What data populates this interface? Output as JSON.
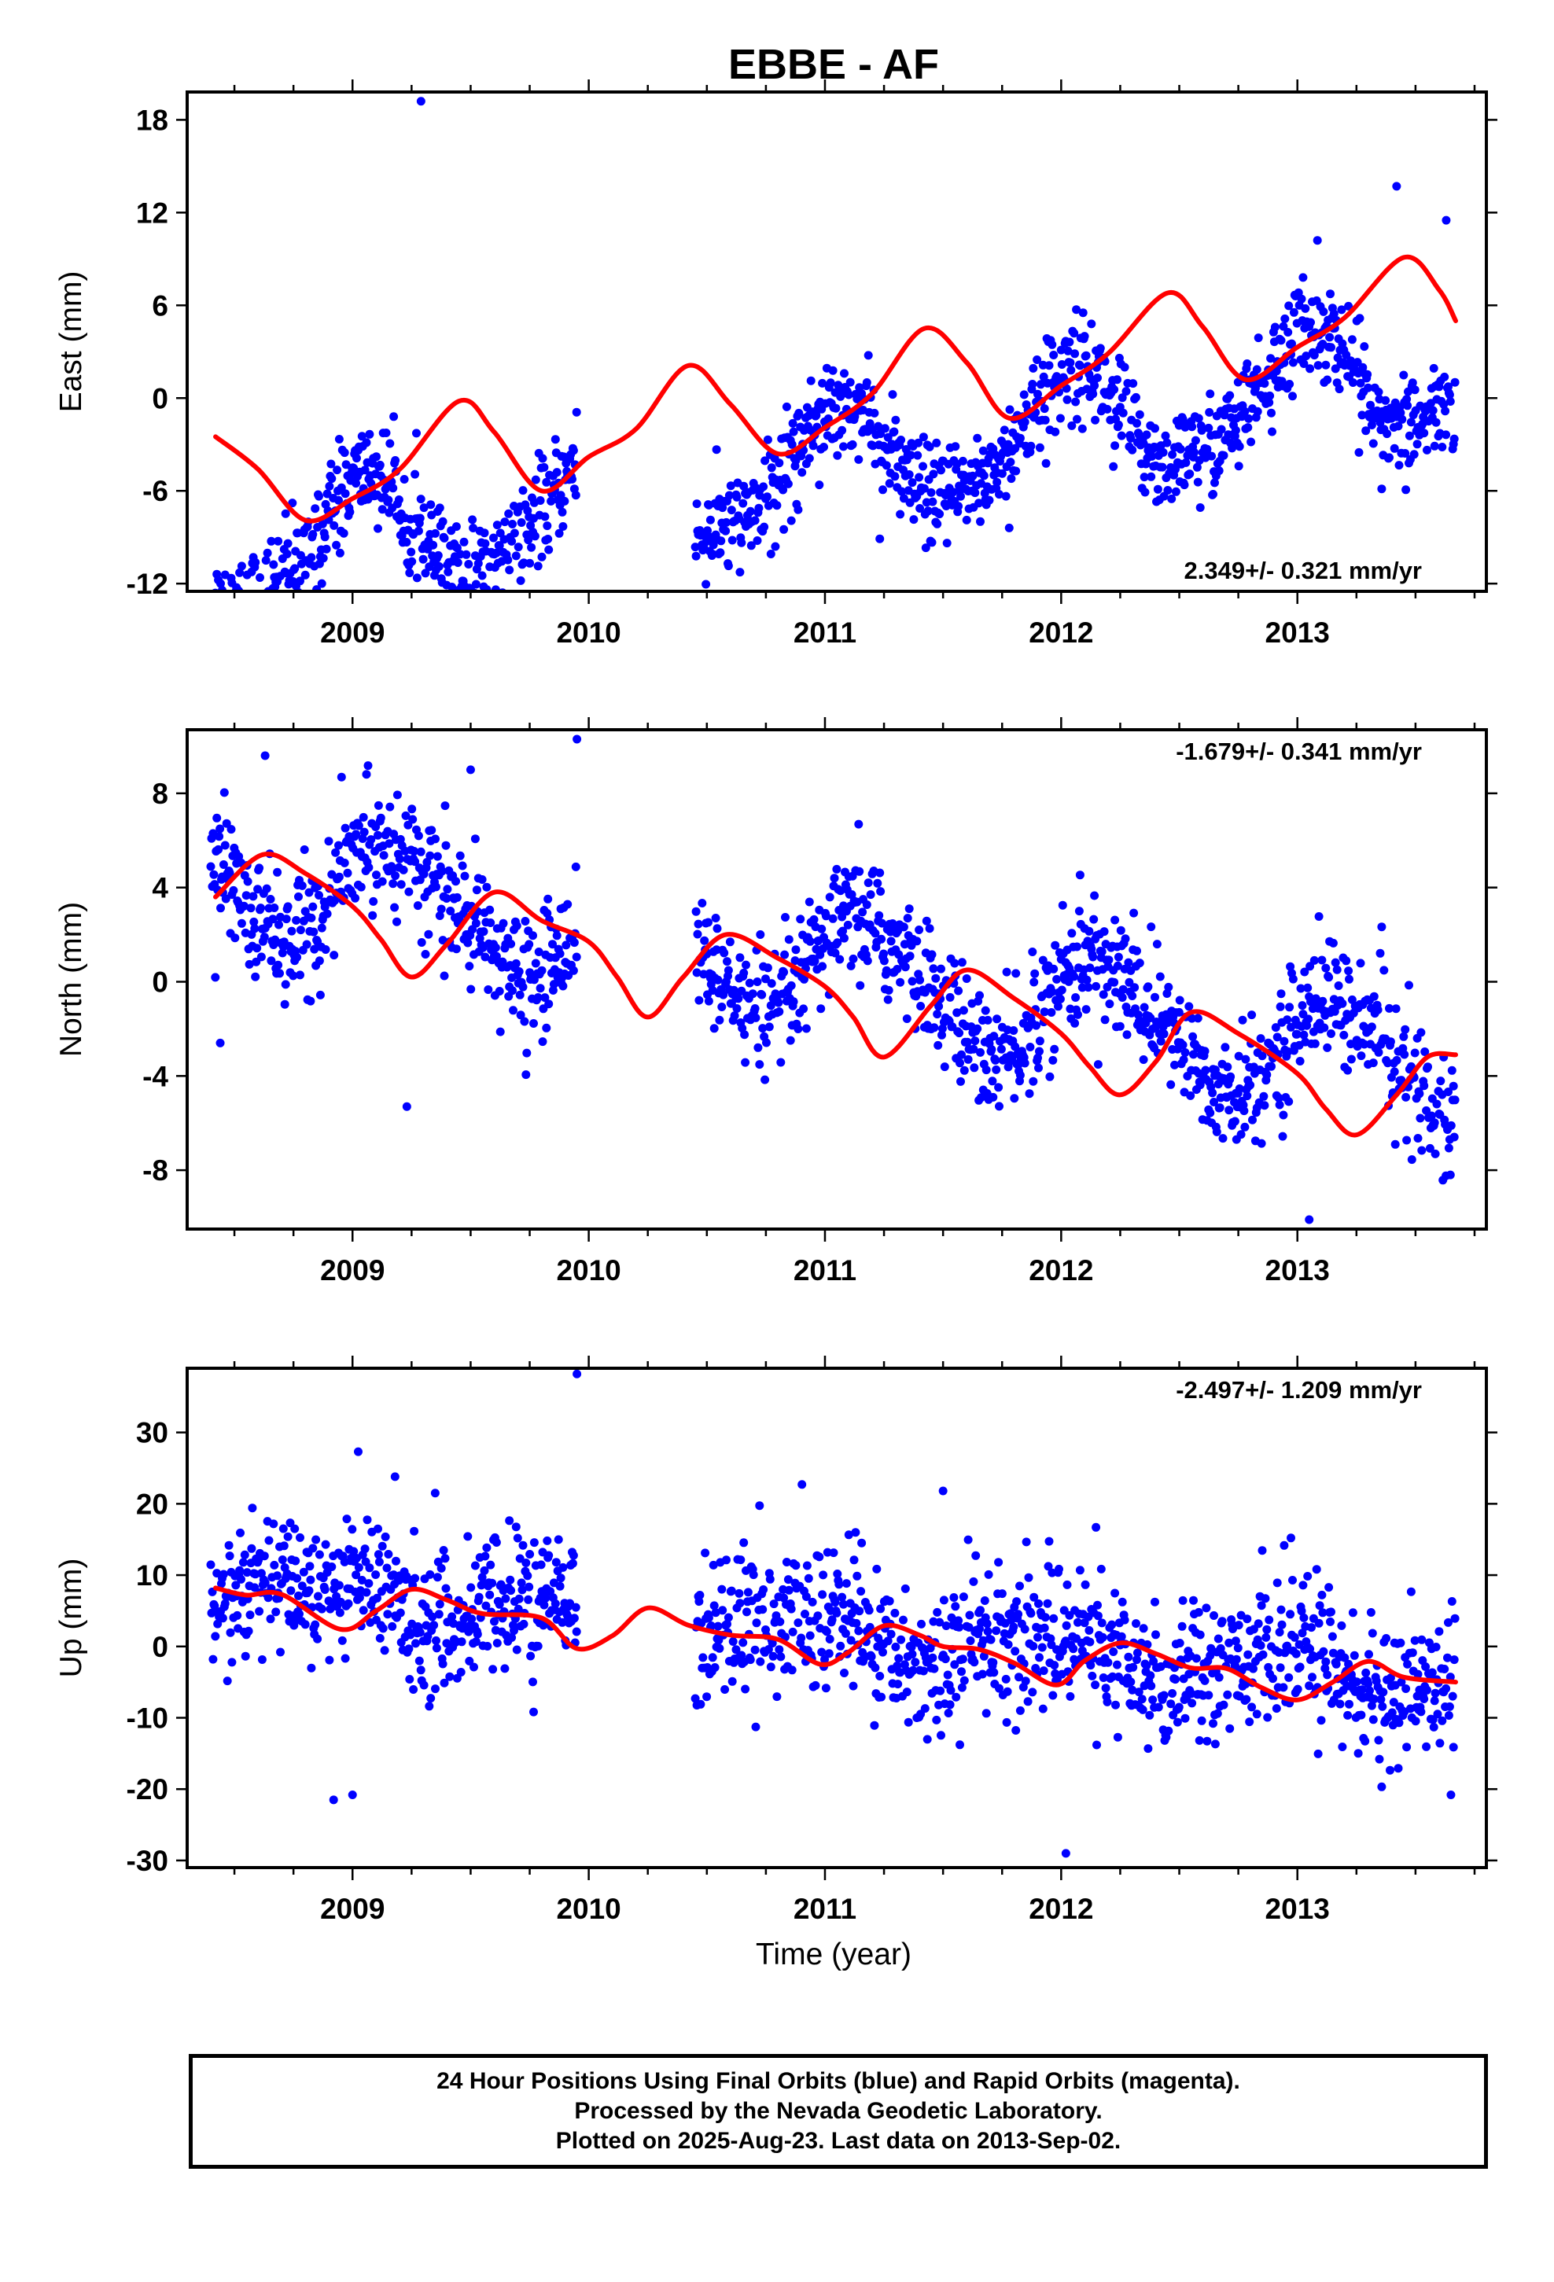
{
  "chart_data": {
    "type": "scatter",
    "title": "EBBE - AF",
    "xlabel": "Time (year)",
    "xlim": [
      2008.3,
      2013.8
    ],
    "x_ticks": [
      2009,
      2010,
      2011,
      2012,
      2013
    ],
    "x_tick_labels": [
      "2009",
      "2010",
      "2011",
      "2012",
      "2013"
    ],
    "series_styles": {
      "points": "#0000ff",
      "fit": "#ff0000"
    },
    "data_gap": [
      2009.95,
      2010.45
    ],
    "panels": [
      {
        "name": "east",
        "ylabel": "East (mm)",
        "ylim": [
          -12.5,
          19.8
        ],
        "y_ticks": [
          18,
          12,
          6,
          0,
          -6,
          -12
        ],
        "y_tick_labels": [
          "18",
          "12",
          "6",
          "0",
          "-6",
          "-12"
        ],
        "rate_label": "2.349+/- 0.321 mm/yr",
        "rate_position": "bottom-right",
        "model": {
          "rate": 2.349,
          "amp_annual": 3.6,
          "phase_annual": 1.3,
          "amp_semi": 0.6,
          "phase_semi": 0.5,
          "offset": -4.4,
          "t0": 2011.0
        },
        "noise_sd": 1.6,
        "fit_points": [
          [
            2008.42,
            -2.5
          ],
          [
            2008.6,
            -4.6
          ],
          [
            2008.8,
            -7.9
          ],
          [
            2009.0,
            -6.5
          ],
          [
            2009.2,
            -4.6
          ],
          [
            2009.45,
            -0.2
          ],
          [
            2009.6,
            -2.2
          ],
          [
            2009.8,
            -6.0
          ],
          [
            2010.0,
            -3.8
          ],
          [
            2010.2,
            -2.0
          ],
          [
            2010.42,
            2.1
          ],
          [
            2010.6,
            -0.4
          ],
          [
            2010.8,
            -3.6
          ],
          [
            2011.0,
            -1.9
          ],
          [
            2011.2,
            0.3
          ],
          [
            2011.42,
            4.5
          ],
          [
            2011.6,
            2.3
          ],
          [
            2011.78,
            -1.3
          ],
          [
            2012.0,
            0.8
          ],
          [
            2012.2,
            2.9
          ],
          [
            2012.45,
            6.8
          ],
          [
            2012.6,
            4.6
          ],
          [
            2012.78,
            1.2
          ],
          [
            2013.0,
            3.3
          ],
          [
            2013.2,
            5.2
          ],
          [
            2013.45,
            9.1
          ],
          [
            2013.6,
            7.0
          ],
          [
            2013.67,
            5.0
          ]
        ],
        "outliers": [
          [
            2009.29,
            19.2
          ],
          [
            2013.42,
            13.7
          ],
          [
            2013.63,
            11.5
          ],
          [
            2008.58,
            -10.3
          ],
          [
            2008.87,
            -12.0
          ],
          [
            2010.79,
            -9.6
          ],
          [
            2011.78,
            -8.4
          ]
        ]
      },
      {
        "name": "north",
        "ylabel": "North (mm)",
        "ylim": [
          -10.5,
          10.7
        ],
        "y_ticks": [
          8,
          4,
          0,
          -4,
          -8
        ],
        "y_tick_labels": [
          "8",
          "4",
          "0",
          "-4",
          "-8"
        ],
        "rate_label": "-1.679+/- 0.341 mm/yr",
        "rate_position": "top-right",
        "model": {
          "rate": -1.679,
          "amp_annual": 2.3,
          "phase_annual": 0.4,
          "amp_semi": 0.4,
          "phase_semi": 1.0,
          "offset": 0.5,
          "t0": 2011.0
        },
        "noise_sd": 1.3,
        "fit_points": [
          [
            2008.42,
            3.6
          ],
          [
            2008.62,
            5.4
          ],
          [
            2008.8,
            4.6
          ],
          [
            2009.0,
            3.2
          ],
          [
            2009.12,
            1.8
          ],
          [
            2009.25,
            0.2
          ],
          [
            2009.4,
            1.6
          ],
          [
            2009.6,
            3.8
          ],
          [
            2009.8,
            2.6
          ],
          [
            2010.0,
            1.7
          ],
          [
            2010.12,
            0.2
          ],
          [
            2010.25,
            -1.5
          ],
          [
            2010.4,
            0.2
          ],
          [
            2010.58,
            2.0
          ],
          [
            2010.8,
            1.0
          ],
          [
            2011.0,
            -0.2
          ],
          [
            2011.12,
            -1.5
          ],
          [
            2011.25,
            -3.2
          ],
          [
            2011.45,
            -1.0
          ],
          [
            2011.6,
            0.5
          ],
          [
            2011.8,
            -0.7
          ],
          [
            2012.0,
            -2.2
          ],
          [
            2012.12,
            -3.6
          ],
          [
            2012.25,
            -4.8
          ],
          [
            2012.4,
            -3.4
          ],
          [
            2012.55,
            -1.3
          ],
          [
            2012.75,
            -2.2
          ],
          [
            2013.0,
            -3.9
          ],
          [
            2013.12,
            -5.4
          ],
          [
            2013.25,
            -6.5
          ],
          [
            2013.42,
            -4.8
          ],
          [
            2013.55,
            -3.2
          ],
          [
            2013.67,
            -3.1
          ]
        ],
        "outliers": [
          [
            2008.63,
            9.6
          ],
          [
            2009.5,
            9.0
          ],
          [
            2009.95,
            10.3
          ],
          [
            2008.44,
            -2.6
          ],
          [
            2009.23,
            -5.3
          ],
          [
            2013.05,
            -10.1
          ]
        ]
      },
      {
        "name": "up",
        "ylabel": "Up (mm)",
        "ylim": [
          -31,
          39
        ],
        "y_ticks": [
          30,
          20,
          10,
          0,
          -10,
          -20,
          -30
        ],
        "y_tick_labels": [
          "30",
          "20",
          "10",
          "0",
          "-10",
          "-20",
          "-30"
        ],
        "rate_label": "-2.497+/- 1.209 mm/yr",
        "rate_position": "top-right",
        "model": {
          "rate": -2.497,
          "amp_annual": 2.5,
          "phase_annual": 2.2,
          "amp_semi": 1.2,
          "phase_semi": 0.3,
          "offset": 2.0,
          "t0": 2011.0
        },
        "noise_sd": 5.0,
        "fit_points": [
          [
            2008.42,
            8.2
          ],
          [
            2008.55,
            7.2
          ],
          [
            2008.7,
            7.3
          ],
          [
            2008.95,
            2.4
          ],
          [
            2009.1,
            5.0
          ],
          [
            2009.25,
            8.0
          ],
          [
            2009.4,
            6.5
          ],
          [
            2009.55,
            4.6
          ],
          [
            2009.8,
            4.0
          ],
          [
            2009.95,
            -0.3
          ],
          [
            2010.1,
            1.5
          ],
          [
            2010.25,
            5.4
          ],
          [
            2010.42,
            3.0
          ],
          [
            2010.6,
            1.6
          ],
          [
            2010.8,
            1.0
          ],
          [
            2010.98,
            -2.5
          ],
          [
            2011.1,
            -0.8
          ],
          [
            2011.25,
            2.9
          ],
          [
            2011.4,
            1.6
          ],
          [
            2011.5,
            0.0
          ],
          [
            2011.65,
            -0.4
          ],
          [
            2011.8,
            -2.3
          ],
          [
            2011.98,
            -5.4
          ],
          [
            2012.1,
            -2.0
          ],
          [
            2012.25,
            0.5
          ],
          [
            2012.4,
            -1.0
          ],
          [
            2012.55,
            -3.0
          ],
          [
            2012.7,
            -3.1
          ],
          [
            2012.85,
            -5.8
          ],
          [
            2013.0,
            -7.5
          ],
          [
            2013.15,
            -5.0
          ],
          [
            2013.3,
            -2.1
          ],
          [
            2013.45,
            -4.3
          ],
          [
            2013.67,
            -5.0
          ]
        ],
        "outliers": [
          [
            2009.95,
            38.2
          ],
          [
            2009.18,
            23.8
          ],
          [
            2009.35,
            21.5
          ],
          [
            2011.5,
            21.8
          ],
          [
            2008.92,
            -21.5
          ],
          [
            2009.0,
            -20.8
          ],
          [
            2012.02,
            -29.0
          ],
          [
            2013.65,
            -20.8
          ]
        ]
      }
    ]
  },
  "footer": {
    "line1": "24 Hour Positions Using Final Orbits (blue) and Rapid Orbits (magenta).",
    "line2": "Processed by the Nevada Geodetic Laboratory.",
    "line3": "Plotted on 2025-Aug-23. Last data on 2013-Sep-02."
  }
}
